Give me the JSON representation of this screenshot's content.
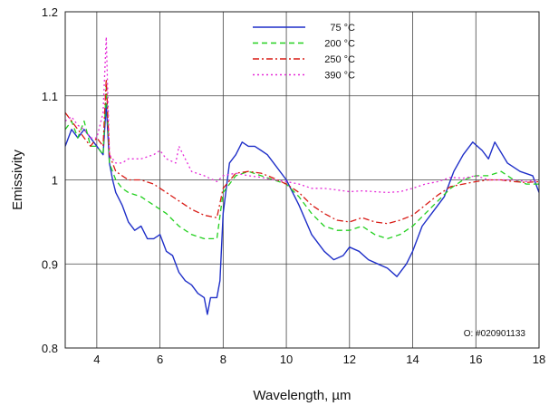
{
  "chart_data": {
    "type": "line",
    "title": "",
    "xlabel": "Wavelength, µm",
    "ylabel": "Emissivity",
    "xlim": [
      3,
      18
    ],
    "ylim": [
      0.8,
      1.2
    ],
    "xticks": [
      4,
      6,
      8,
      10,
      12,
      14,
      16,
      18
    ],
    "yticks": [
      0.8,
      0.9,
      1,
      1.1,
      1.2
    ],
    "ytick_labels": [
      "0.8",
      "0.9",
      "1",
      "1.1",
      "1.2"
    ],
    "grid": true,
    "legend_position": "top-center",
    "annotation": "O: #020901133",
    "series": [
      {
        "name": "75 °C",
        "color": "#1f2fc8",
        "dash": "solid",
        "x": [
          3.0,
          3.2,
          3.4,
          3.6,
          3.8,
          4.0,
          4.2,
          4.3,
          4.4,
          4.5,
          4.6,
          4.8,
          5.0,
          5.2,
          5.4,
          5.6,
          5.8,
          6.0,
          6.2,
          6.4,
          6.6,
          6.8,
          7.0,
          7.2,
          7.4,
          7.5,
          7.6,
          7.8,
          7.9,
          8.0,
          8.2,
          8.4,
          8.6,
          8.8,
          9.0,
          9.2,
          9.4,
          9.6,
          10.0,
          10.4,
          10.8,
          11.2,
          11.5,
          11.8,
          12.0,
          12.3,
          12.6,
          12.9,
          13.2,
          13.5,
          13.8,
          14.0,
          14.3,
          14.6,
          15.0,
          15.3,
          15.6,
          15.9,
          16.2,
          16.4,
          16.6,
          17.0,
          17.4,
          17.8,
          18.0
        ],
        "y": [
          1.04,
          1.06,
          1.05,
          1.06,
          1.05,
          1.04,
          1.03,
          1.09,
          1.02,
          1.0,
          0.985,
          0.97,
          0.95,
          0.94,
          0.945,
          0.93,
          0.93,
          0.935,
          0.915,
          0.91,
          0.89,
          0.88,
          0.875,
          0.865,
          0.86,
          0.84,
          0.86,
          0.86,
          0.88,
          0.96,
          1.02,
          1.03,
          1.045,
          1.04,
          1.04,
          1.035,
          1.03,
          1.02,
          1.0,
          0.97,
          0.935,
          0.915,
          0.905,
          0.91,
          0.92,
          0.915,
          0.905,
          0.9,
          0.895,
          0.885,
          0.9,
          0.915,
          0.945,
          0.96,
          0.98,
          1.01,
          1.03,
          1.045,
          1.035,
          1.025,
          1.045,
          1.02,
          1.01,
          1.005,
          0.985
        ]
      },
      {
        "name": "200 °C",
        "color": "#22d01e",
        "dash": "6,4",
        "x": [
          3.0,
          3.2,
          3.4,
          3.6,
          3.8,
          4.0,
          4.2,
          4.3,
          4.4,
          4.6,
          4.8,
          5.0,
          5.4,
          5.8,
          6.2,
          6.6,
          7.0,
          7.4,
          7.8,
          8.0,
          8.4,
          8.8,
          9.2,
          9.6,
          10.0,
          10.4,
          10.8,
          11.2,
          11.6,
          12.0,
          12.4,
          12.8,
          13.2,
          13.6,
          14.0,
          14.4,
          14.8,
          15.2,
          15.6,
          16.0,
          16.4,
          16.8,
          17.2,
          17.6,
          18.0
        ],
        "y": [
          1.06,
          1.07,
          1.05,
          1.07,
          1.04,
          1.04,
          1.03,
          1.11,
          1.02,
          1.0,
          0.99,
          0.985,
          0.98,
          0.97,
          0.96,
          0.945,
          0.935,
          0.93,
          0.93,
          0.985,
          1.005,
          1.01,
          1.005,
          1.0,
          0.995,
          0.98,
          0.96,
          0.945,
          0.94,
          0.94,
          0.945,
          0.935,
          0.93,
          0.935,
          0.945,
          0.96,
          0.975,
          0.99,
          1.0,
          1.005,
          1.005,
          1.01,
          1.0,
          0.995,
          0.995
        ]
      },
      {
        "name": "250 °C",
        "color": "#d81a14",
        "dash": "7,3,2,3",
        "x": [
          3.0,
          3.2,
          3.4,
          3.6,
          3.8,
          4.0,
          4.2,
          4.3,
          4.4,
          4.6,
          4.8,
          5.0,
          5.4,
          5.8,
          6.2,
          6.6,
          7.0,
          7.4,
          7.8,
          8.0,
          8.4,
          8.8,
          9.2,
          9.6,
          10.0,
          10.4,
          10.8,
          11.2,
          11.6,
          12.0,
          12.4,
          12.8,
          13.2,
          13.6,
          14.0,
          14.4,
          14.8,
          15.2,
          15.6,
          16.0,
          16.4,
          16.8,
          17.2,
          17.6,
          18.0
        ],
        "y": [
          1.08,
          1.07,
          1.06,
          1.05,
          1.04,
          1.05,
          1.04,
          1.12,
          1.03,
          1.01,
          1.005,
          1.0,
          1.0,
          0.995,
          0.985,
          0.975,
          0.965,
          0.958,
          0.955,
          0.99,
          1.008,
          1.01,
          1.008,
          1.002,
          0.995,
          0.985,
          0.97,
          0.96,
          0.952,
          0.95,
          0.955,
          0.95,
          0.948,
          0.952,
          0.958,
          0.97,
          0.982,
          0.992,
          0.995,
          0.998,
          1.0,
          1.0,
          0.998,
          0.997,
          0.998
        ]
      },
      {
        "name": "390 °C",
        "color": "#e62ad8",
        "dash": "2,3",
        "x": [
          3.0,
          3.2,
          3.4,
          3.6,
          3.8,
          4.0,
          4.2,
          4.3,
          4.4,
          4.6,
          4.8,
          5.0,
          5.4,
          5.8,
          6.0,
          6.2,
          6.5,
          6.6,
          7.0,
          7.4,
          7.8,
          8.0,
          8.4,
          8.8,
          9.2,
          9.6,
          10.0,
          10.4,
          10.8,
          11.2,
          11.6,
          12.0,
          12.4,
          12.8,
          13.2,
          13.6,
          14.0,
          14.4,
          14.8,
          15.2,
          15.6,
          16.0,
          16.4,
          16.8,
          17.2,
          17.6,
          18.0
        ],
        "y": [
          1.07,
          1.075,
          1.065,
          1.06,
          1.05,
          1.05,
          1.08,
          1.17,
          1.03,
          1.02,
          1.02,
          1.025,
          1.025,
          1.03,
          1.035,
          1.025,
          1.02,
          1.04,
          1.01,
          1.005,
          0.998,
          1.005,
          1.008,
          1.005,
          1.003,
          1.0,
          0.998,
          0.995,
          0.99,
          0.99,
          0.988,
          0.986,
          0.987,
          0.986,
          0.985,
          0.986,
          0.99,
          0.995,
          0.998,
          1.003,
          1.002,
          1.005,
          1.0,
          1.0,
          1.0,
          0.998,
          1.0
        ]
      }
    ]
  }
}
